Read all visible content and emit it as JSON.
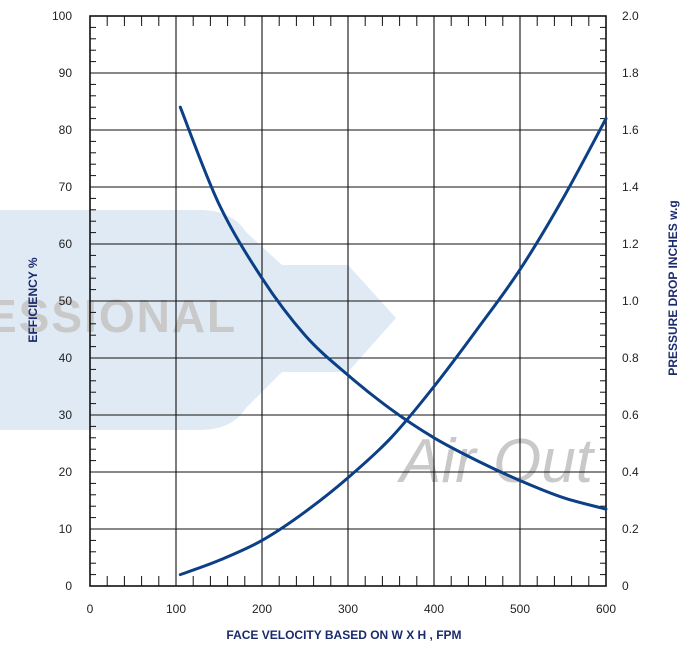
{
  "colors": {
    "curve": "#0b3f86",
    "grid": "#111111",
    "watermark_shape": "#dfeaf4",
    "watermark_text": "#c9c9c9",
    "axis_title": "#1a2a6c"
  },
  "watermark": {
    "left_text": "ESSIONAL",
    "right_text": "Air Out"
  },
  "chart_data": {
    "type": "line",
    "xlabel": "FACE VELOCITY BASED ON  W X H , FPM",
    "ylabel_left": "EFFICIENCY  %",
    "ylabel_right": "PRESSURE DROP INCHES w.g",
    "xlim": [
      0,
      600
    ],
    "ylim_left": [
      0,
      100
    ],
    "ylim_right": [
      0,
      2.0
    ],
    "x_ticks": [
      "0",
      "100",
      "200",
      "300",
      "400",
      "500",
      "600"
    ],
    "y_left_ticks": [
      "0",
      "10",
      "20",
      "30",
      "40",
      "50",
      "60",
      "70",
      "80",
      "90",
      "100"
    ],
    "y_right_ticks": [
      "0",
      "0.2",
      "0.4",
      "0.6",
      "0.8",
      "1.0",
      "1.2",
      "1.4",
      "1.6",
      "1.8",
      "2.0"
    ],
    "grid": true,
    "series": [
      {
        "axis": "left",
        "x": [
          105,
          150,
          200,
          250,
          300,
          350,
          400,
          450,
          500,
          550,
          600
        ],
        "y": [
          84,
          67,
          54,
          44,
          37,
          31,
          26,
          22,
          18.5,
          15.5,
          13.5
        ]
      },
      {
        "axis": "right",
        "x": [
          105,
          150,
          200,
          250,
          300,
          350,
          400,
          450,
          500,
          550,
          600
        ],
        "y": [
          0.04,
          0.09,
          0.16,
          0.26,
          0.38,
          0.52,
          0.7,
          0.9,
          1.11,
          1.36,
          1.64
        ]
      }
    ]
  }
}
